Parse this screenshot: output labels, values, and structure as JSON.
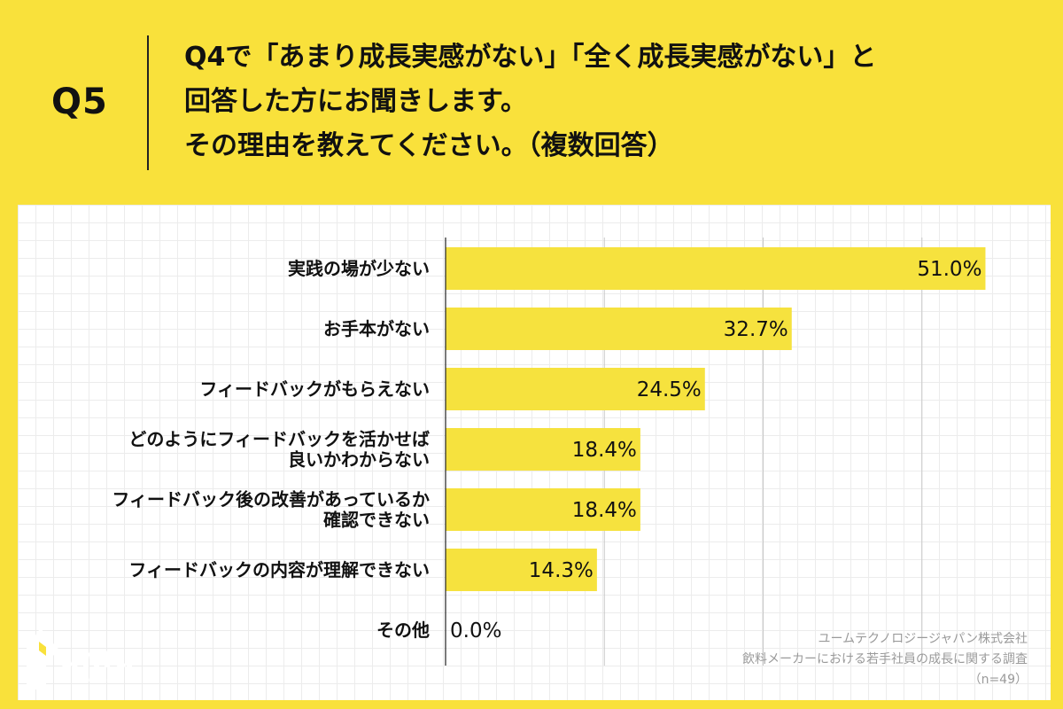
{
  "question": {
    "number": "Q5",
    "lines": [
      "Q4で「あまり成長実感がない」「全く成長実感がない」と",
      "回答した方にお聞きします。",
      "その理由を教えてください。（複数回答）"
    ]
  },
  "colors": {
    "background": "#F9E13B",
    "bar": "#F6E23E",
    "card": "#FFFFFF"
  },
  "chart_data": {
    "type": "bar",
    "orientation": "horizontal",
    "categories": [
      "実践の場が少ない",
      "お手本がない",
      "フィードバックがもらえない",
      "どのようにフィードバックを活かせば\n良いかわからない",
      "フィードバック後の改善があっているか\n確認できない",
      "フィードバックの内容が理解できない",
      "その他"
    ],
    "values": [
      51.0,
      32.7,
      24.5,
      18.4,
      18.4,
      14.3,
      0.0
    ],
    "value_labels": [
      "51.0%",
      "32.7%",
      "24.5%",
      "18.4%",
      "18.4%",
      "14.3%",
      "0.0%"
    ],
    "xlim": [
      0,
      60
    ],
    "unit": "%",
    "grid": true
  },
  "logo": {
    "name": "umu",
    "url": "www.umu.co"
  },
  "source": {
    "company": "ユームテクノロジージャパン株式会社",
    "survey": "飲料メーカーにおける若手社員の成長に関する調査",
    "n": "（n=49）"
  }
}
